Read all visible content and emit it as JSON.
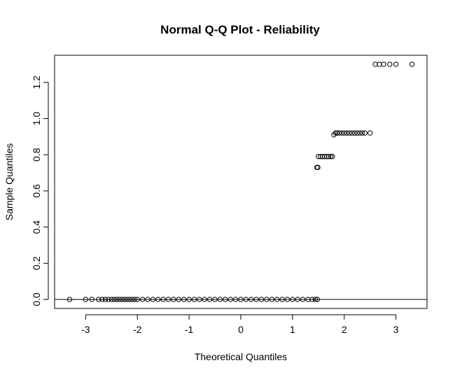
{
  "chart_data": {
    "type": "scatter",
    "title": "Normal Q-Q Plot - Reliability",
    "xlabel": "Theoretical Quantiles",
    "ylabel": "Sample Quantiles",
    "xlim": [
      -3.6,
      3.6
    ],
    "ylim": [
      -0.05,
      1.35
    ],
    "x_ticks": [
      -3,
      -2,
      -1,
      0,
      1,
      2,
      3
    ],
    "x_tick_labels": [
      "-3",
      "-2",
      "-1",
      "0",
      "1",
      "2",
      "3"
    ],
    "y_ticks": [
      0.0,
      0.2,
      0.4,
      0.6,
      0.8,
      1.0,
      1.2
    ],
    "y_tick_labels": [
      "0.0",
      "0.2",
      "0.4",
      "0.6",
      "0.8",
      "1.0",
      "1.2"
    ],
    "reference_line": {
      "slope": 0,
      "intercept": 0
    },
    "grid": false,
    "marker": "open-circle",
    "series": [
      {
        "points": [
          [
            -3.31,
            0.0
          ],
          [
            -3.0,
            0.0
          ],
          [
            -2.88,
            0.0
          ],
          [
            -2.75,
            0.0
          ],
          [
            -2.68,
            0.0
          ],
          [
            -2.62,
            0.0
          ],
          [
            -2.56,
            0.0
          ],
          [
            -2.5,
            0.0
          ],
          [
            -2.45,
            0.0
          ],
          [
            -2.4,
            0.0
          ],
          [
            -2.35,
            0.0
          ],
          [
            -2.3,
            0.0
          ],
          [
            -2.25,
            0.0
          ],
          [
            -2.2,
            0.0
          ],
          [
            -2.15,
            0.0
          ],
          [
            -2.1,
            0.0
          ],
          [
            -2.05,
            0.0
          ],
          [
            -2.0,
            0.0
          ],
          [
            -1.9,
            0.0
          ],
          [
            -1.8,
            0.0
          ],
          [
            -1.7,
            0.0
          ],
          [
            -1.6,
            0.0
          ],
          [
            -1.5,
            0.0
          ],
          [
            -1.4,
            0.0
          ],
          [
            -1.3,
            0.0
          ],
          [
            -1.2,
            0.0
          ],
          [
            -1.1,
            0.0
          ],
          [
            -1.0,
            0.0
          ],
          [
            -0.9,
            0.0
          ],
          [
            -0.8,
            0.0
          ],
          [
            -0.7,
            0.0
          ],
          [
            -0.6,
            0.0
          ],
          [
            -0.5,
            0.0
          ],
          [
            -0.4,
            0.0
          ],
          [
            -0.3,
            0.0
          ],
          [
            -0.2,
            0.0
          ],
          [
            -0.1,
            0.0
          ],
          [
            0.0,
            0.0
          ],
          [
            0.1,
            0.0
          ],
          [
            0.2,
            0.0
          ],
          [
            0.3,
            0.0
          ],
          [
            0.4,
            0.0
          ],
          [
            0.5,
            0.0
          ],
          [
            0.6,
            0.0
          ],
          [
            0.7,
            0.0
          ],
          [
            0.8,
            0.0
          ],
          [
            0.9,
            0.0
          ],
          [
            1.0,
            0.0
          ],
          [
            1.1,
            0.0
          ],
          [
            1.2,
            0.0
          ],
          [
            1.3,
            0.0
          ],
          [
            1.38,
            0.0
          ],
          [
            1.44,
            0.0
          ],
          [
            1.48,
            0.0
          ],
          [
            1.47,
            0.73
          ],
          [
            1.49,
            0.73
          ],
          [
            1.5,
            0.79
          ],
          [
            1.54,
            0.79
          ],
          [
            1.58,
            0.79
          ],
          [
            1.62,
            0.79
          ],
          [
            1.66,
            0.79
          ],
          [
            1.7,
            0.79
          ],
          [
            1.74,
            0.79
          ],
          [
            1.77,
            0.79
          ],
          [
            1.8,
            0.91
          ],
          [
            1.83,
            0.92
          ],
          [
            1.86,
            0.92
          ],
          [
            1.9,
            0.92
          ],
          [
            1.95,
            0.92
          ],
          [
            2.0,
            0.92
          ],
          [
            2.05,
            0.92
          ],
          [
            2.1,
            0.92
          ],
          [
            2.15,
            0.92
          ],
          [
            2.2,
            0.92
          ],
          [
            2.25,
            0.92
          ],
          [
            2.3,
            0.92
          ],
          [
            2.35,
            0.92
          ],
          [
            2.4,
            0.92
          ],
          [
            2.5,
            0.92
          ],
          [
            2.6,
            1.3
          ],
          [
            2.68,
            1.3
          ],
          [
            2.76,
            1.3
          ],
          [
            2.88,
            1.3
          ],
          [
            3.0,
            1.3
          ],
          [
            3.31,
            1.3
          ]
        ]
      }
    ]
  }
}
